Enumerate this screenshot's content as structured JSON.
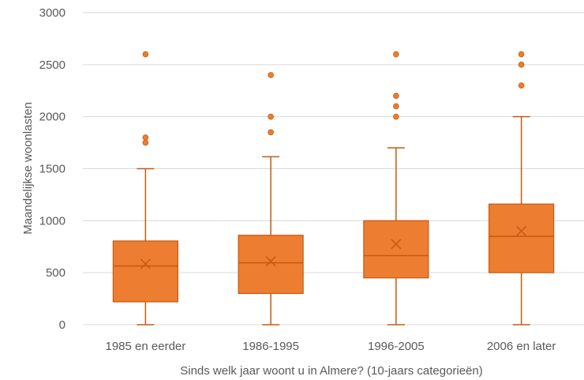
{
  "chart_data": {
    "type": "box",
    "xlabel": "Sinds welk jaar woont u in Almere? (10-jaars categorieën)",
    "ylabel": "Maandelijkse woonlasten",
    "ylim": [
      0,
      3000
    ],
    "yticks": [
      0,
      500,
      1000,
      1500,
      2000,
      2500,
      3000
    ],
    "grid": true,
    "colors": {
      "box": "#ED7D31",
      "stroke": "#C55A11",
      "grid": "#D9D9D9",
      "text": "#595959"
    },
    "categories": [
      "1985 en eerder",
      "1986-1995",
      "1996-2005",
      "2006 en later"
    ],
    "boxes": [
      {
        "min": 0,
        "q1": 220,
        "median": 565,
        "q3": 805,
        "max": 1500,
        "mean": 585,
        "outliers": [
          1750,
          1800,
          2600
        ]
      },
      {
        "min": 0,
        "q1": 300,
        "median": 595,
        "q3": 860,
        "max": 1615,
        "mean": 610,
        "outliers": [
          1850,
          2000,
          2400
        ]
      },
      {
        "min": 0,
        "q1": 450,
        "median": 665,
        "q3": 1000,
        "max": 1700,
        "mean": 775,
        "outliers": [
          2000,
          2100,
          2200,
          2600
        ]
      },
      {
        "min": 0,
        "q1": 500,
        "median": 850,
        "q3": 1160,
        "max": 2000,
        "mean": 900,
        "outliers": [
          2300,
          2500,
          2600
        ]
      }
    ]
  }
}
